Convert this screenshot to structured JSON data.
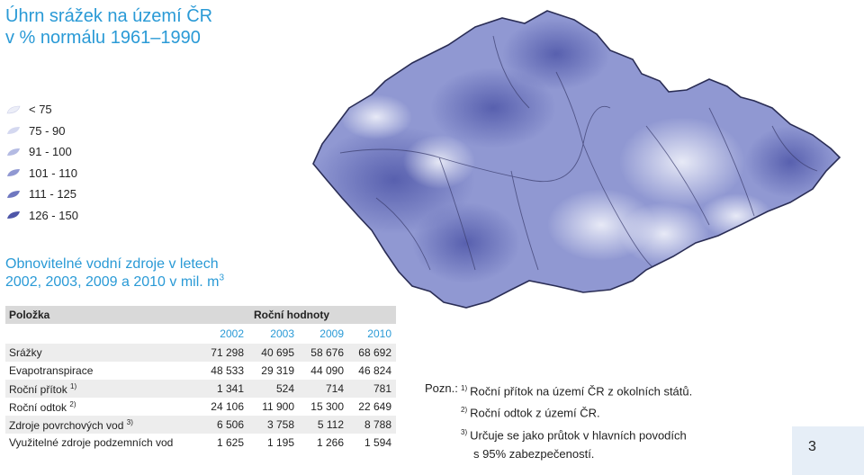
{
  "title": {
    "line1": "Úhrn srážek na území ČR",
    "line2": "v % normálu 1961–1990"
  },
  "legend": {
    "items": [
      {
        "label": "< 75",
        "color": "#eceef8"
      },
      {
        "label": "75 - 90",
        "color": "#d4d8f0"
      },
      {
        "label": "91 - 100",
        "color": "#b4bbe3"
      },
      {
        "label": "101 - 110",
        "color": "#9098d2"
      },
      {
        "label": "111 - 125",
        "color": "#6f78c0"
      },
      {
        "label": "126 - 150",
        "color": "#4e56a8"
      }
    ]
  },
  "subtitle": {
    "line1": "Obnovitelné vodní zdroje v letech",
    "line2": "2002, 2003, 2009 a 2010 v mil. m",
    "sup": "3"
  },
  "table": {
    "header_left": "Položka",
    "header_right": "Roční hodnoty",
    "years": [
      "2002",
      "2003",
      "2009",
      "2010"
    ],
    "rows": [
      {
        "label": "Srážky",
        "note": "",
        "values": [
          "71 298",
          "40 695",
          "58 676",
          "68 692"
        ]
      },
      {
        "label": "Evapotranspirace",
        "note": "",
        "values": [
          "48 533",
          "29 319",
          "44 090",
          "46 824"
        ]
      },
      {
        "label": "Roční přítok",
        "note": "1)",
        "values": [
          "1 341",
          "524",
          "714",
          "781"
        ]
      },
      {
        "label": "Roční odtok",
        "note": "2)",
        "values": [
          "24 106",
          "11 900",
          "15 300",
          "22 649"
        ]
      },
      {
        "label": "Zdroje povrchových vod",
        "note": "3)",
        "values": [
          "6 506",
          "3 758",
          "5 112",
          "8 788"
        ]
      },
      {
        "label": "Využitelné zdroje podzemních vod",
        "note": "",
        "values": [
          "1 625",
          "1 195",
          "1 266",
          "1 594"
        ]
      }
    ]
  },
  "notes": {
    "prefix": "Pozn.:",
    "items": [
      {
        "num": "1)",
        "text": "Roční přítok na území ČR z okolních států."
      },
      {
        "num": "2)",
        "text": "Roční odtok z území ČR."
      },
      {
        "num": "3)",
        "text": "Určuje se jako průtok v hlavních povodích"
      }
    ],
    "continuation": "s 95% zabezpečeností."
  },
  "page_number": "3"
}
